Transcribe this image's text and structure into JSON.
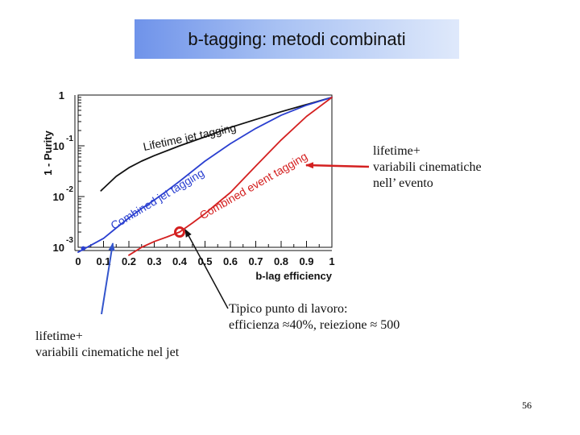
{
  "slide": {
    "title": "b-tagging: metodi combinati",
    "page_number": "56"
  },
  "annotations": {
    "event_line1": "lifetime+",
    "event_line2": "variabili cinematiche",
    "event_line3": "nell’ evento",
    "jet_line1": "lifetime+",
    "jet_line2": "variabili cinematiche nel jet",
    "work_line1": "Tipico punto di lavoro:",
    "work_line2": "efficienza ≈40%, reiezione ≈ 500"
  },
  "colors": {
    "lifetime": "#111111",
    "combined_jet": "#2a3fd0",
    "combined_event": "#d42020",
    "arrow_red": "#d42020",
    "arrow_blue": "#3355cc",
    "arrow_black": "#111111"
  },
  "chart_data": {
    "type": "line",
    "xlabel": "b-lag efficiency",
    "ylabel": "1 - Purity",
    "xlim": [
      0,
      1
    ],
    "ylim": [
      0.001,
      1
    ],
    "yscale": "log",
    "x_ticks": [
      "0",
      "0.1",
      "0.2",
      "0.3",
      "0.4",
      "0.5",
      "0.6",
      "0.7",
      "0.8",
      "0.9",
      "1"
    ],
    "y_ticks": [
      {
        "base": "1",
        "exp": ""
      },
      {
        "base": "10",
        "exp": "-1"
      },
      {
        "base": "10",
        "exp": "-2"
      },
      {
        "base": "10",
        "exp": "-3"
      }
    ],
    "series": [
      {
        "name": "Lifetime jet tagging",
        "color": "#111111",
        "x": [
          0.09,
          0.15,
          0.2,
          0.25,
          0.3,
          0.4,
          0.5,
          0.6,
          0.7,
          0.8,
          0.9,
          1.0
        ],
        "y": [
          0.013,
          0.025,
          0.037,
          0.05,
          0.064,
          0.1,
          0.15,
          0.23,
          0.33,
          0.47,
          0.65,
          0.9
        ]
      },
      {
        "name": "Combined jet tagging",
        "color": "#2a3fd0",
        "x": [
          0.0,
          0.05,
          0.1,
          0.15,
          0.2,
          0.25,
          0.3,
          0.35,
          0.4,
          0.5,
          0.6,
          0.7,
          0.8,
          0.9,
          1.0
        ],
        "y": [
          0.0008,
          0.0011,
          0.0015,
          0.0024,
          0.0038,
          0.0058,
          0.0085,
          0.013,
          0.02,
          0.05,
          0.11,
          0.22,
          0.4,
          0.63,
          0.9
        ]
      },
      {
        "name": "Combined event tagging",
        "color": "#d42020",
        "x": [
          0.2,
          0.25,
          0.3,
          0.35,
          0.4,
          0.45,
          0.5,
          0.55,
          0.6,
          0.7,
          0.8,
          0.9,
          1.0
        ],
        "y": [
          0.0007,
          0.001,
          0.0013,
          0.0016,
          0.002,
          0.003,
          0.0046,
          0.0075,
          0.012,
          0.04,
          0.13,
          0.38,
          0.9
        ]
      }
    ],
    "working_point": {
      "x": 0.4,
      "y": 0.002
    }
  }
}
